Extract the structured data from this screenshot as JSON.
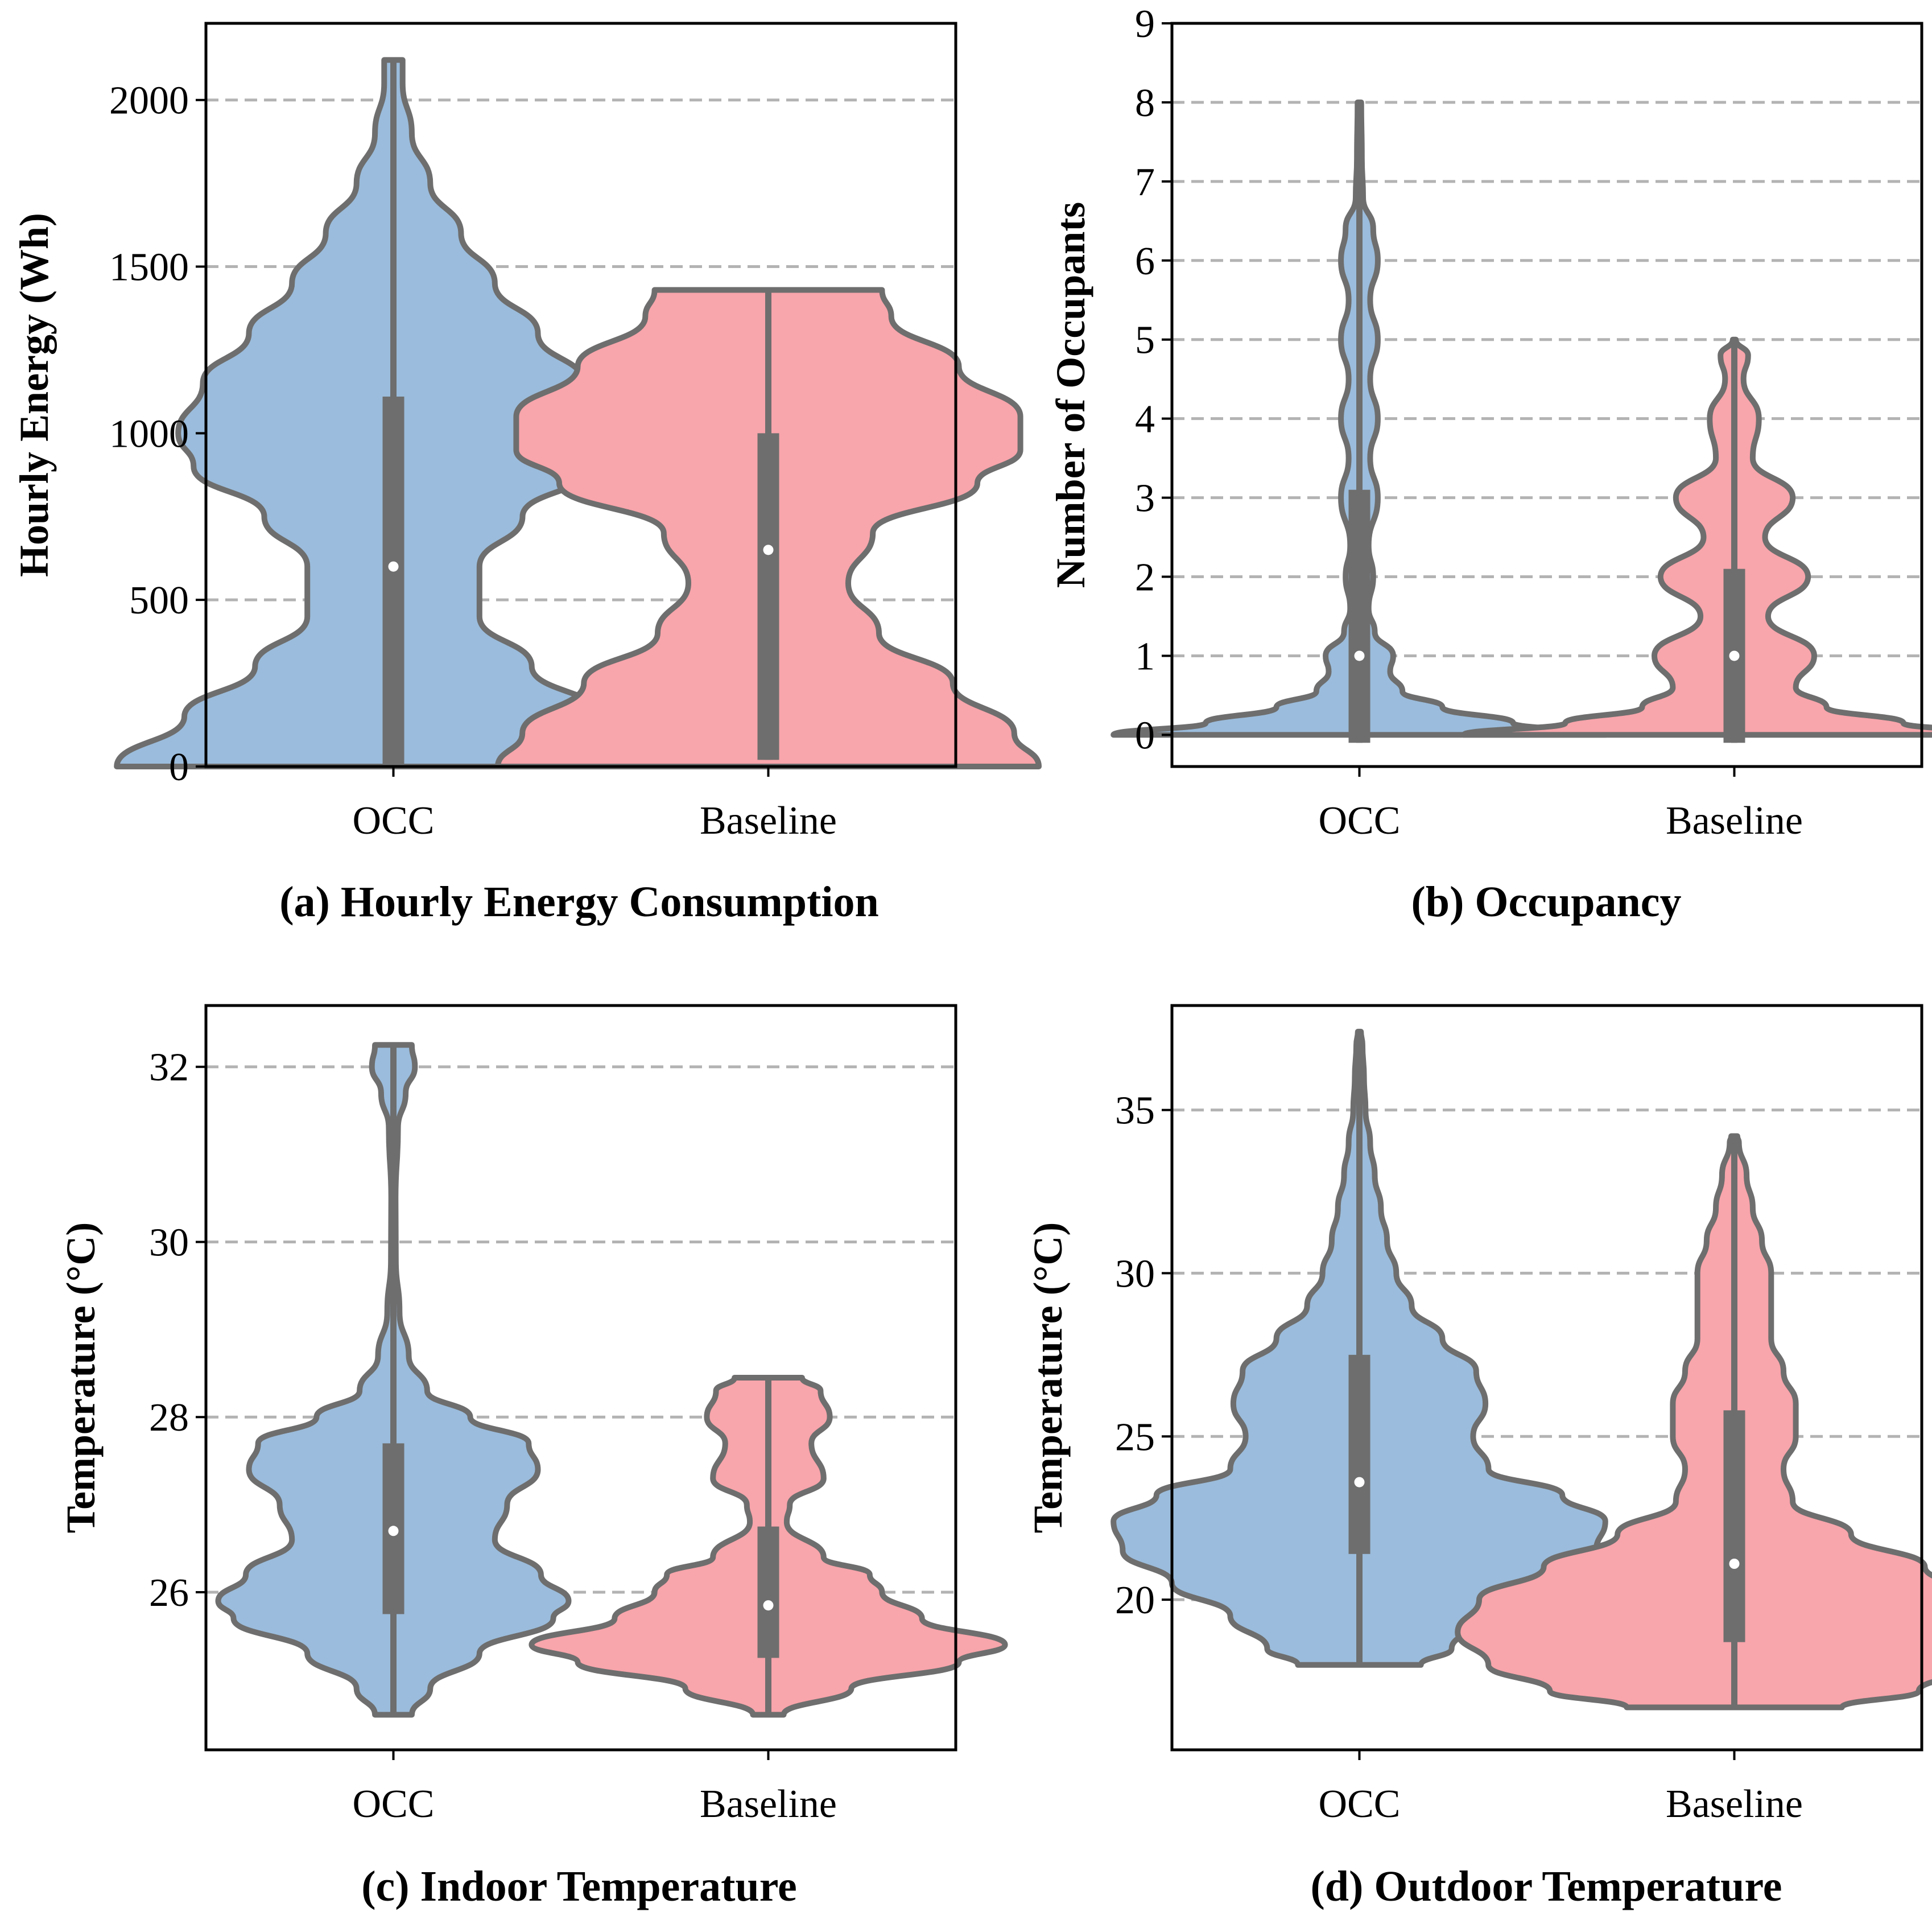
{
  "colors": {
    "occ": "#9bbcdc",
    "baseline": "#f8a5ab",
    "edge": "#6e6e6e",
    "grid": "#b3b3b3"
  },
  "chart_data": [
    {
      "id": "a",
      "type": "violin",
      "title": "(a) Hourly Energy Consumption",
      "xlabel": "",
      "ylabel": "Hourly Energy (Wh)",
      "ylim": [
        0,
        2230
      ],
      "yticks": [
        0,
        500,
        1000,
        1500,
        2000
      ],
      "categories": [
        "OCC",
        "Baseline"
      ],
      "series": [
        {
          "name": "OCC",
          "stats": {
            "min": 0,
            "q1": 0,
            "median": 600,
            "q3": 1110,
            "max": 2120
          },
          "density": [
            [
              0,
              0.9
            ],
            [
              150,
              0.68
            ],
            [
              300,
              0.45
            ],
            [
              450,
              0.28
            ],
            [
              600,
              0.28
            ],
            [
              750,
              0.42
            ],
            [
              900,
              0.65
            ],
            [
              1000,
              0.7
            ],
            [
              1150,
              0.62
            ],
            [
              1300,
              0.47
            ],
            [
              1450,
              0.33
            ],
            [
              1600,
              0.22
            ],
            [
              1750,
              0.12
            ],
            [
              1900,
              0.06
            ],
            [
              2050,
              0.03
            ],
            [
              2120,
              0.03
            ]
          ]
        },
        {
          "name": "Baseline",
          "stats": {
            "min": 20,
            "q1": 20,
            "median": 650,
            "q3": 1000,
            "max": 1430
          },
          "density": [
            [
              0,
              0.88
            ],
            [
              100,
              0.8
            ],
            [
              250,
              0.6
            ],
            [
              400,
              0.36
            ],
            [
              550,
              0.26
            ],
            [
              700,
              0.34
            ],
            [
              850,
              0.68
            ],
            [
              950,
              0.82
            ],
            [
              1050,
              0.82
            ],
            [
              1200,
              0.62
            ],
            [
              1350,
              0.4
            ],
            [
              1430,
              0.37
            ]
          ]
        }
      ]
    },
    {
      "id": "b",
      "type": "violin",
      "title": "(b) Occupancy",
      "xlabel": "",
      "ylabel": "Number of Occupants",
      "ylim": [
        -0.4,
        9
      ],
      "yticks": [
        0,
        1,
        2,
        3,
        4,
        5,
        6,
        7,
        8,
        9
      ],
      "categories": [
        "OCC",
        "Baseline"
      ],
      "series": [
        {
          "name": "OCC",
          "stats": {
            "min": -0.1,
            "q1": -0.1,
            "median": 1,
            "q3": 3.1,
            "max": 8
          },
          "density": [
            [
              0,
              0.8
            ],
            [
              0.15,
              0.5
            ],
            [
              0.35,
              0.27
            ],
            [
              0.55,
              0.14
            ],
            [
              0.8,
              0.1
            ],
            [
              1.0,
              0.11
            ],
            [
              1.3,
              0.05
            ],
            [
              1.6,
              0.03
            ],
            [
              2.0,
              0.045
            ],
            [
              2.4,
              0.03
            ],
            [
              3.0,
              0.06
            ],
            [
              3.5,
              0.035
            ],
            [
              4.0,
              0.06
            ],
            [
              4.5,
              0.035
            ],
            [
              5.0,
              0.06
            ],
            [
              5.5,
              0.035
            ],
            [
              6.0,
              0.06
            ],
            [
              6.4,
              0.045
            ],
            [
              6.8,
              0.012
            ],
            [
              7.3,
              0.008
            ],
            [
              8.0,
              0.006
            ]
          ]
        },
        {
          "name": "Baseline",
          "stats": {
            "min": -0.1,
            "q1": -0.1,
            "median": 1,
            "q3": 2.1,
            "max": 5
          },
          "density": [
            [
              0,
              0.88
            ],
            [
              0.15,
              0.55
            ],
            [
              0.35,
              0.3
            ],
            [
              0.6,
              0.2
            ],
            [
              1.0,
              0.26
            ],
            [
              1.5,
              0.11
            ],
            [
              2.0,
              0.24
            ],
            [
              2.5,
              0.1
            ],
            [
              3.0,
              0.19
            ],
            [
              3.5,
              0.06
            ],
            [
              4.0,
              0.08
            ],
            [
              4.5,
              0.03
            ],
            [
              4.8,
              0.045
            ],
            [
              5.0,
              0.005
            ]
          ]
        }
      ]
    },
    {
      "id": "c",
      "type": "violin",
      "title": "(c) Indoor Temperature",
      "xlabel": "",
      "ylabel": "Temperature (°C)",
      "ylim": [
        24.2,
        32.7
      ],
      "yticks": [
        26,
        28,
        30,
        32
      ],
      "categories": [
        "OCC",
        "Baseline"
      ],
      "series": [
        {
          "name": "OCC",
          "stats": {
            "min": 24.6,
            "q1": 25.75,
            "median": 26.7,
            "q3": 27.7,
            "max": 32.25
          },
          "density": [
            [
              24.6,
              0.06
            ],
            [
              24.9,
              0.12
            ],
            [
              25.3,
              0.28
            ],
            [
              25.7,
              0.52
            ],
            [
              25.9,
              0.57
            ],
            [
              26.2,
              0.48
            ],
            [
              26.6,
              0.33
            ],
            [
              27.0,
              0.37
            ],
            [
              27.4,
              0.47
            ],
            [
              27.7,
              0.44
            ],
            [
              28.0,
              0.25
            ],
            [
              28.3,
              0.11
            ],
            [
              28.7,
              0.05
            ],
            [
              29.2,
              0.02
            ],
            [
              29.8,
              0.008
            ],
            [
              30.5,
              0.007
            ],
            [
              31.3,
              0.015
            ],
            [
              31.7,
              0.04
            ],
            [
              32.0,
              0.07
            ],
            [
              32.25,
              0.06
            ]
          ]
        },
        {
          "name": "Baseline",
          "stats": {
            "min": 24.6,
            "q1": 25.25,
            "median": 25.85,
            "q3": 26.75,
            "max": 28.45
          },
          "density": [
            [
              24.6,
              0.05
            ],
            [
              24.9,
              0.27
            ],
            [
              25.2,
              0.62
            ],
            [
              25.4,
              0.77
            ],
            [
              25.7,
              0.5
            ],
            [
              26.0,
              0.37
            ],
            [
              26.2,
              0.33
            ],
            [
              26.4,
              0.18
            ],
            [
              26.8,
              0.06
            ],
            [
              27.0,
              0.07
            ],
            [
              27.3,
              0.18
            ],
            [
              27.7,
              0.14
            ],
            [
              28.0,
              0.2
            ],
            [
              28.3,
              0.17
            ],
            [
              28.45,
              0.11
            ]
          ]
        }
      ]
    },
    {
      "id": "d",
      "type": "violin",
      "title": "(d) Outdoor Temperature",
      "xlabel": "",
      "ylabel": "Temperature (°C)",
      "ylim": [
        15.4,
        38.2
      ],
      "yticks": [
        20,
        25,
        30,
        35
      ],
      "categories": [
        "OCC",
        "Baseline"
      ],
      "series": [
        {
          "name": "OCC",
          "stats": {
            "min": 18.0,
            "q1": 21.4,
            "median": 23.6,
            "q3": 27.5,
            "max": 37.4
          },
          "density": [
            [
              18.0,
              0.2
            ],
            [
              18.5,
              0.3
            ],
            [
              19.5,
              0.42
            ],
            [
              20.5,
              0.61
            ],
            [
              21.5,
              0.77
            ],
            [
              22.4,
              0.8
            ],
            [
              23.2,
              0.66
            ],
            [
              24.0,
              0.42
            ],
            [
              25.0,
              0.37
            ],
            [
              26.0,
              0.41
            ],
            [
              27.0,
              0.38
            ],
            [
              28.0,
              0.27
            ],
            [
              29.0,
              0.17
            ],
            [
              30.0,
              0.12
            ],
            [
              31.0,
              0.09
            ],
            [
              32.0,
              0.07
            ],
            [
              33.0,
              0.05
            ],
            [
              34.0,
              0.035
            ],
            [
              35.0,
              0.02
            ],
            [
              36.0,
              0.015
            ],
            [
              37.0,
              0.01
            ],
            [
              37.4,
              0.005
            ]
          ]
        },
        {
          "name": "Baseline",
          "stats": {
            "min": 16.7,
            "q1": 18.7,
            "median": 21.1,
            "q3": 25.8,
            "max": 34.2
          },
          "density": [
            [
              16.7,
              0.35
            ],
            [
              17.2,
              0.6
            ],
            [
              18.0,
              0.8
            ],
            [
              19.0,
              0.9
            ],
            [
              20.0,
              0.83
            ],
            [
              21.0,
              0.62
            ],
            [
              22.0,
              0.38
            ],
            [
              23.0,
              0.19
            ],
            [
              24.0,
              0.16
            ],
            [
              25.0,
              0.2
            ],
            [
              26.0,
              0.2
            ],
            [
              27.0,
              0.16
            ],
            [
              28.0,
              0.12
            ],
            [
              29.0,
              0.12
            ],
            [
              30.0,
              0.12
            ],
            [
              31.0,
              0.09
            ],
            [
              32.0,
              0.06
            ],
            [
              33.0,
              0.04
            ],
            [
              34.0,
              0.015
            ],
            [
              34.2,
              0.01
            ]
          ]
        }
      ]
    }
  ]
}
